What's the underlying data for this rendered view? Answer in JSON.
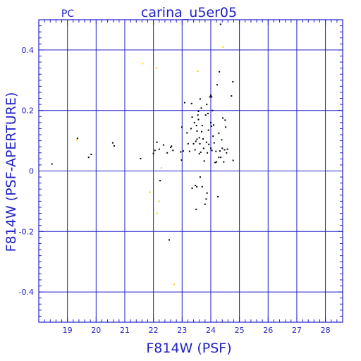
{
  "header": {
    "left_label": "PC",
    "title": "carina_u5er05"
  },
  "colors": {
    "axes": "#2020c8",
    "grid": "#2020c8",
    "points_black": "#000000",
    "points_yellow": "#f0d000",
    "background": "#ffffff"
  },
  "chart_data": {
    "type": "scatter",
    "title": "carina_u5er05",
    "xlabel": "F814W (PSF)",
    "ylabel": "F814W (PSF-APERTURE)",
    "xlim": [
      18.0,
      28.6
    ],
    "ylim": [
      -0.5,
      0.5
    ],
    "xticks": [
      19,
      20,
      21,
      22,
      23,
      24,
      25,
      26,
      27,
      28
    ],
    "yticks": [
      -0.4,
      -0.2,
      0,
      0.2,
      0.4
    ],
    "ytick_labels": [
      "-0.4",
      "-0.2",
      "0",
      "0.2",
      "0.4"
    ],
    "xgrid": [
      18,
      19,
      20,
      21,
      22,
      23,
      24,
      25,
      26,
      27,
      28
    ],
    "ygrid": [
      0.4,
      0.2,
      0,
      -0.2,
      -0.4
    ],
    "grid": true,
    "series": [
      {
        "color": "black",
        "points": [
          [
            18.46,
            0.023
          ],
          [
            19.35,
            0.108
          ],
          [
            19.74,
            0.045
          ],
          [
            19.83,
            0.055
          ],
          [
            20.58,
            0.093
          ],
          [
            20.63,
            0.083
          ],
          [
            21.55,
            0.041
          ],
          [
            22.0,
            0.058
          ],
          [
            22.05,
            0.068
          ],
          [
            22.12,
            0.095
          ],
          [
            22.2,
            0.072
          ],
          [
            22.23,
            -0.032
          ],
          [
            22.35,
            0.086
          ],
          [
            22.48,
            0.06
          ],
          [
            22.55,
            -0.228
          ],
          [
            22.6,
            0.078
          ],
          [
            22.63,
            0.082
          ],
          [
            22.68,
            0.068
          ],
          [
            22.95,
            0.063
          ],
          [
            22.98,
            0.036
          ],
          [
            22.99,
            0.145
          ],
          [
            23.04,
            0.066
          ],
          [
            23.09,
            0.226
          ],
          [
            23.17,
            0.126
          ],
          [
            23.21,
            0.09
          ],
          [
            23.26,
            0.065
          ],
          [
            23.31,
            0.14
          ],
          [
            23.33,
            0.223
          ],
          [
            23.35,
            -0.057
          ],
          [
            23.35,
            0.178
          ],
          [
            23.4,
            0.09
          ],
          [
            23.43,
            0.16
          ],
          [
            23.45,
            0.07
          ],
          [
            23.46,
            -0.048
          ],
          [
            23.48,
            0.098
          ],
          [
            23.49,
            -0.127
          ],
          [
            23.5,
            0.15
          ],
          [
            23.51,
            -0.052
          ],
          [
            23.52,
            0.132
          ],
          [
            23.52,
            0.105
          ],
          [
            23.55,
            0.185
          ],
          [
            23.57,
            0.197
          ],
          [
            23.57,
            0.17
          ],
          [
            23.6,
            0.11
          ],
          [
            23.6,
            0.057
          ],
          [
            23.62,
            0.09
          ],
          [
            23.63,
            -0.02
          ],
          [
            23.63,
            0.238
          ],
          [
            23.65,
            0.062
          ],
          [
            23.67,
            0.208
          ],
          [
            23.68,
            0.13
          ],
          [
            23.7,
            0.15
          ],
          [
            23.7,
            -0.052
          ],
          [
            23.73,
            0.106
          ],
          [
            23.75,
            0.075
          ],
          [
            23.77,
            0.033
          ],
          [
            23.8,
            -0.11
          ],
          [
            23.82,
            0.185
          ],
          [
            23.84,
            -0.093
          ],
          [
            23.85,
            0.095
          ],
          [
            23.86,
            0.22
          ],
          [
            23.87,
            -0.073
          ],
          [
            23.88,
            0.06
          ],
          [
            23.9,
            0.19
          ],
          [
            23.92,
            0.135
          ],
          [
            23.93,
            0.088
          ],
          [
            23.97,
            0.245
          ],
          [
            24.0,
            0.16
          ],
          [
            24.0,
            0.075
          ],
          [
            24.0,
            0.25
          ],
          [
            24.02,
            0.148
          ],
          [
            24.03,
            0.245
          ],
          [
            24.04,
            0.068
          ],
          [
            24.06,
            0.2
          ],
          [
            24.08,
            0.115
          ],
          [
            24.1,
            0.152
          ],
          [
            24.12,
            0.093
          ],
          [
            24.15,
            0.028
          ],
          [
            24.18,
            0.065
          ],
          [
            24.2,
            0.03
          ],
          [
            24.22,
            0.285
          ],
          [
            24.25,
            -0.085
          ],
          [
            24.28,
            0.125
          ],
          [
            24.28,
            0.045
          ],
          [
            24.3,
            0.328
          ],
          [
            24.32,
            0.066
          ],
          [
            24.34,
            0.485
          ],
          [
            24.35,
            0.045
          ],
          [
            24.38,
            0.103
          ],
          [
            24.4,
            0.075
          ],
          [
            24.42,
            0.175
          ],
          [
            24.45,
            0.03
          ],
          [
            24.48,
            0.07
          ],
          [
            24.5,
            0.168
          ],
          [
            24.52,
            0.145
          ],
          [
            24.55,
            0.06
          ],
          [
            24.58,
            0.072
          ],
          [
            24.72,
            0.248
          ],
          [
            24.77,
            0.295
          ],
          [
            24.78,
            0.035
          ]
        ]
      },
      {
        "color": "yellow",
        "points": [
          [
            19.33,
            0.103
          ],
          [
            21.62,
            0.355
          ],
          [
            21.88,
            -0.07
          ],
          [
            22.1,
            0.34
          ],
          [
            22.12,
            -0.14
          ],
          [
            22.2,
            -0.1
          ],
          [
            22.28,
            0.01
          ],
          [
            22.72,
            -0.375
          ],
          [
            23.55,
            0.33
          ],
          [
            24.42,
            0.41
          ]
        ]
      }
    ]
  }
}
